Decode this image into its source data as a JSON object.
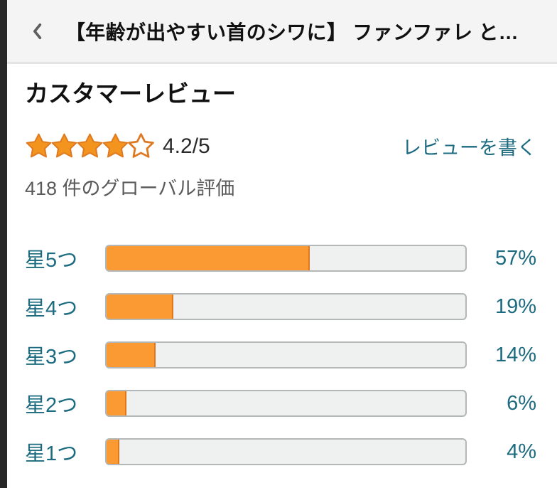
{
  "header": {
    "back_icon": "chevron-left",
    "title": "【年齢が出やすい首のシワに】 ファンファレ と…"
  },
  "review_summary": {
    "section_title": "カスタマーレビュー",
    "rating_text": "4.2/5",
    "stars_filled": 4,
    "stars_total": 5,
    "global_ratings_text": "418 件のグローバル評価",
    "write_review_label": "レビューを書く"
  },
  "rating_bars": [
    {
      "label": "星5つ",
      "percent": 57,
      "percent_label": "57%"
    },
    {
      "label": "星4つ",
      "percent": 19,
      "percent_label": "19%"
    },
    {
      "label": "星3つ",
      "percent": 14,
      "percent_label": "14%"
    },
    {
      "label": "星2つ",
      "percent": 6,
      "percent_label": "6%"
    },
    {
      "label": "星1つ",
      "percent": 4,
      "percent_label": "4%"
    }
  ],
  "colors": {
    "accent_orange": "#fb9a33",
    "bar_fill_border": "#e0771c",
    "star_fill": "#f2941e",
    "star_border": "#de7921",
    "teal_link": "#1c6b80",
    "track_bg": "#eff0f0",
    "track_border": "#b3b7b7",
    "header_bg": "#f4f4f4",
    "header_divider": "#e4e4e4",
    "side_strip": "#272727",
    "text_dark": "#111111",
    "text_gray": "#5a5a5a"
  }
}
